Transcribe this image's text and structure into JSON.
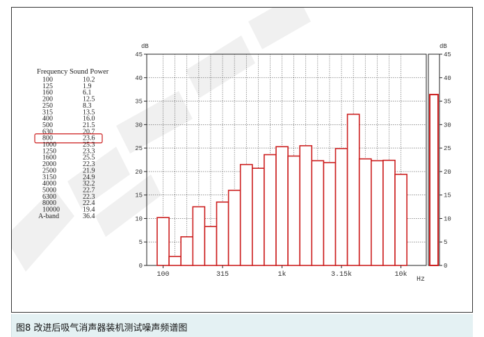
{
  "caption": "图8 改进后吸气消声器装机测试噪声频谱图",
  "chart_data": {
    "type": "bar",
    "ylabel": "dB",
    "xlabel": "Hz",
    "ylim": [
      0,
      45
    ],
    "yticks": [
      0,
      5,
      10,
      15,
      20,
      25,
      30,
      35,
      40,
      45
    ],
    "grid": true,
    "bar_color": "#cc1f1f",
    "table_header": "Frequency Sound Power",
    "categories": [
      "100",
      "125",
      "160",
      "200",
      "250",
      "315",
      "400",
      "500",
      "630",
      "800",
      "1000",
      "1250",
      "1600",
      "2000",
      "2500",
      "3150",
      "4000",
      "5000",
      "6300",
      "8000",
      "10000"
    ],
    "values": [
      10.2,
      1.9,
      6.1,
      12.5,
      8.3,
      13.5,
      16.0,
      21.5,
      20.7,
      23.6,
      25.3,
      23.3,
      25.5,
      22.3,
      21.9,
      24.9,
      32.2,
      22.7,
      22.3,
      22.4,
      19.4
    ],
    "value_labels": [
      "10.2",
      "1.9",
      "6.1",
      "12.5",
      "8.3",
      "13.5",
      "16.0",
      "21.5",
      "20.7",
      "23.6",
      "25.3",
      "23.3",
      "25.5",
      "22.3",
      "21.9",
      "24.9",
      "32.2",
      "22.7",
      "22.3",
      "22.4",
      "19.4"
    ],
    "x_tick_labels": [
      {
        "index": 0,
        "label": "100"
      },
      {
        "index": 5,
        "label": "315"
      },
      {
        "index": 10,
        "label": "1k"
      },
      {
        "index": 15,
        "label": "3.15k"
      },
      {
        "index": 20,
        "label": "10k"
      }
    ],
    "overall": {
      "label": "A-band",
      "value": 36.4,
      "value_label": "36.4"
    },
    "highlighted_row": "800"
  }
}
